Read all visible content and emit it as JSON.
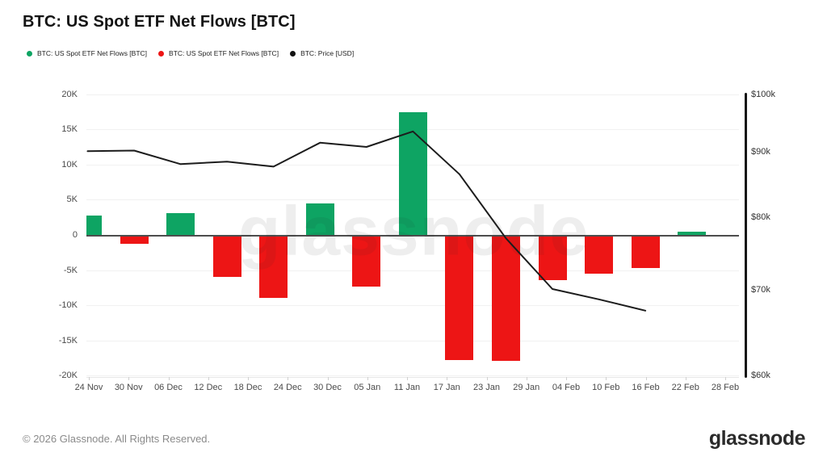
{
  "header": {
    "title": "BTC: US Spot ETF Net Flows [BTC]"
  },
  "legend": {
    "items": [
      {
        "label": "BTC: US Spot ETF Net Flows [BTC]",
        "color": "#0EA463"
      },
      {
        "label": "BTC: US Spot ETF Net Flows [BTC]",
        "color": "#ED1515"
      },
      {
        "label": "BTC: Price [USD]",
        "color": "#111111"
      }
    ]
  },
  "chart_data": {
    "type": "combo_bar_line",
    "title": "BTC: US Spot ETF Net Flows [BTC]",
    "x_tick_labels": [
      "24 Nov",
      "30 Nov",
      "06 Dec",
      "12 Dec",
      "18 Dec",
      "24 Dec",
      "30 Dec",
      "05 Jan",
      "11 Jan",
      "17 Jan",
      "23 Jan",
      "29 Jan",
      "04 Feb",
      "10 Feb",
      "16 Feb",
      "22 Feb",
      "28 Feb"
    ],
    "series": [
      {
        "name": "BTC: US Spot ETF Net Flows [BTC]",
        "type": "bar",
        "unit": "K BTC per week",
        "values_k": [
          2.8,
          -1.2,
          3.2,
          -5.9,
          -8.9,
          4.5,
          -7.3,
          17.5,
          -17.7,
          -17.8,
          -6.4,
          -5.4,
          -4.7,
          0.5
        ],
        "positive_color": "#0EA463",
        "negative_color": "#ED1515"
      },
      {
        "name": "BTC: Price [USD]",
        "type": "line",
        "unit": "USD (thousands)",
        "values_usd_k": [
          90.2,
          90.3,
          88.1,
          88.5,
          87.7,
          91.6,
          90.9,
          93.5,
          86.5,
          77.0,
          70.2,
          68.9,
          67.5
        ],
        "color": "#1C1C1C"
      }
    ],
    "left_axis": {
      "tick_labels": [
        "20K",
        "15K",
        "10K",
        "5K",
        "0",
        "-5K",
        "-10K",
        "-15K",
        "-20K"
      ],
      "tick_values_k": [
        20,
        15,
        10,
        5,
        0,
        -5,
        -10,
        -15,
        -20
      ],
      "range_k": [
        -20,
        20
      ],
      "grid": true
    },
    "right_axis": {
      "tick_labels": [
        "$100k",
        "$90k",
        "$80k",
        "$70k",
        "$60k"
      ],
      "tick_values_usd_k": [
        100,
        90,
        80,
        70,
        60
      ],
      "range_usd_k": [
        60,
        100
      ],
      "scale": "log"
    },
    "legend_position": "top-left"
  },
  "watermark": {
    "text": "glassnode"
  },
  "footer": {
    "copyright": "© 2026 Glassnode. All Rights Reserved.",
    "logo_text": "glassnode"
  }
}
